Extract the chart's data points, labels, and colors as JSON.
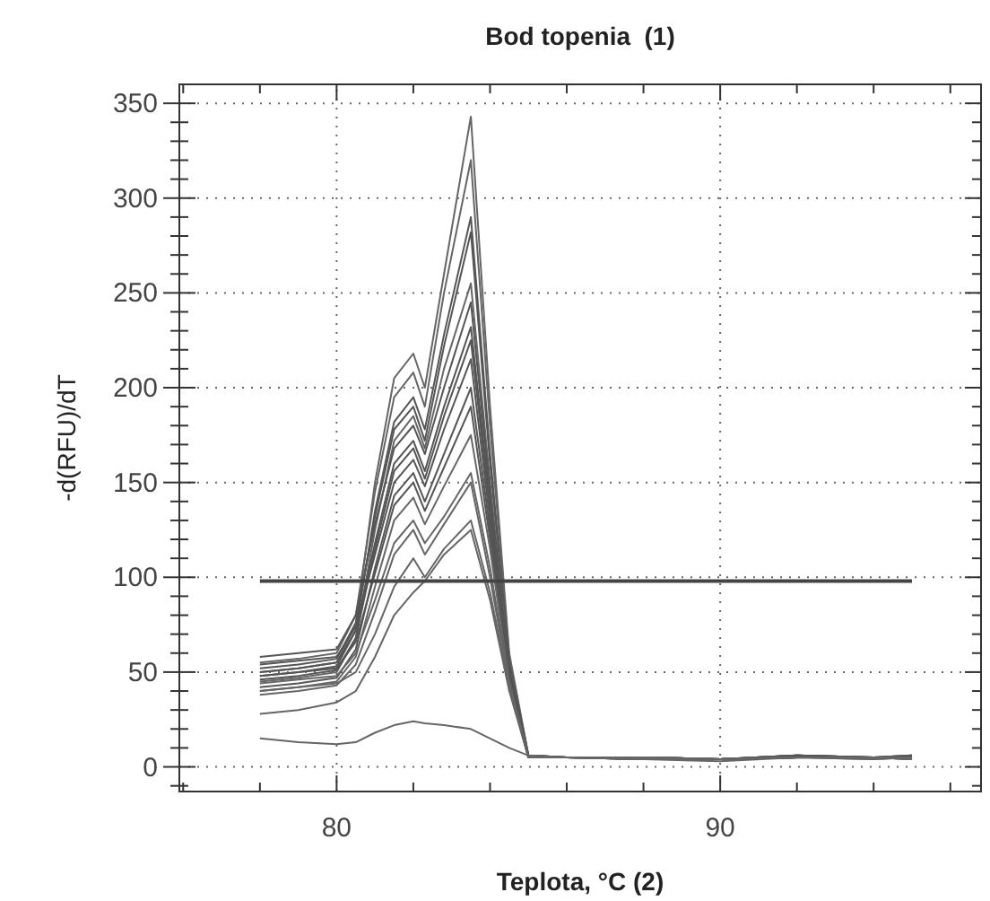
{
  "chart_data": {
    "type": "line",
    "title": "Bod topenia  (1)",
    "xlabel": "Teplota, °C (2)",
    "ylabel": "-d(RFU)/dT",
    "xlim": [
      75.9,
      96.8
    ],
    "ylim": [
      -13,
      360
    ],
    "xticks": [
      {
        "value": 76,
        "label": null
      },
      {
        "value": 78,
        "label": null
      },
      80,
      {
        "value": 82,
        "label": null
      },
      {
        "value": 84,
        "label": null
      },
      {
        "value": 86,
        "label": null
      },
      {
        "value": 88,
        "label": null
      },
      90,
      {
        "value": 92,
        "label": null
      },
      {
        "value": 94,
        "label": null
      },
      {
        "value": 96,
        "label": null
      }
    ],
    "yticks": [
      {
        "value": -10,
        "label": null
      },
      0,
      {
        "value": 10,
        "label": null
      },
      {
        "value": 20,
        "label": null
      },
      {
        "value": 30,
        "label": null
      },
      {
        "value": 40,
        "label": null
      },
      50,
      {
        "value": 60,
        "label": null
      },
      {
        "value": 70,
        "label": null
      },
      {
        "value": 80,
        "label": null
      },
      {
        "value": 90,
        "label": null
      },
      100,
      {
        "value": 110,
        "label": null
      },
      {
        "value": 120,
        "label": null
      },
      {
        "value": 130,
        "label": null
      },
      {
        "value": 140,
        "label": null
      },
      150,
      {
        "value": 160,
        "label": null
      },
      {
        "value": 170,
        "label": null
      },
      {
        "value": 180,
        "label": null
      },
      {
        "value": 190,
        "label": null
      },
      200,
      {
        "value": 210,
        "label": null
      },
      {
        "value": 220,
        "label": null
      },
      {
        "value": 230,
        "label": null
      },
      {
        "value": 240,
        "label": null
      },
      250,
      {
        "value": 260,
        "label": null
      },
      {
        "value": 270,
        "label": null
      },
      {
        "value": 280,
        "label": null
      },
      {
        "value": 290,
        "label": null
      },
      300,
      {
        "value": 310,
        "label": null
      },
      {
        "value": 320,
        "label": null
      },
      {
        "value": 330,
        "label": null
      },
      {
        "value": 340,
        "label": null
      },
      350
    ],
    "grid": true,
    "marker": "none",
    "line_style": "solid",
    "x": [
      78,
      79,
      80,
      80.5,
      81,
      81.5,
      82,
      82.3,
      82.8,
      83.5,
      84,
      84.5,
      85,
      86,
      88,
      90,
      92,
      94,
      95
    ],
    "series": [
      {
        "color": "#666666",
        "values": [
          50,
          52,
          55,
          75,
          150,
          205,
          218,
          200,
          260,
          343,
          190,
          60,
          6,
          5,
          5,
          4,
          6,
          5,
          5
        ]
      },
      {
        "color": "#666666",
        "values": [
          55,
          57,
          60,
          80,
          145,
          195,
          208,
          190,
          250,
          320,
          180,
          58,
          6,
          5,
          5,
          4,
          6,
          5,
          6
        ]
      },
      {
        "color": "#555555",
        "values": [
          48,
          50,
          53,
          72,
          135,
          182,
          195,
          178,
          228,
          290,
          165,
          55,
          6,
          5,
          4,
          4,
          5,
          5,
          4
        ]
      },
      {
        "color": "#555555",
        "values": [
          52,
          54,
          57,
          76,
          132,
          178,
          190,
          172,
          222,
          282,
          160,
          55,
          5,
          5,
          5,
          4,
          6,
          5,
          5
        ]
      },
      {
        "color": "#666666",
        "values": [
          45,
          47,
          50,
          68,
          125,
          172,
          185,
          168,
          210,
          255,
          150,
          52,
          5,
          5,
          4,
          3,
          5,
          4,
          5
        ]
      },
      {
        "color": "#555555",
        "values": [
          58,
          60,
          62,
          80,
          128,
          168,
          180,
          165,
          200,
          245,
          145,
          52,
          6,
          5,
          5,
          4,
          6,
          5,
          6
        ]
      },
      {
        "color": "#555555",
        "values": [
          50,
          52,
          55,
          72,
          118,
          160,
          172,
          156,
          190,
          232,
          140,
          50,
          5,
          5,
          4,
          4,
          5,
          5,
          4
        ]
      },
      {
        "color": "#555555",
        "values": [
          46,
          48,
          51,
          68,
          115,
          156,
          168,
          152,
          185,
          225,
          135,
          50,
          5,
          5,
          5,
          4,
          5,
          5,
          5
        ]
      },
      {
        "color": "#555555",
        "values": [
          54,
          56,
          58,
          74,
          112,
          150,
          162,
          148,
          178,
          215,
          130,
          48,
          6,
          5,
          5,
          4,
          6,
          5,
          6
        ]
      },
      {
        "color": "#555555",
        "values": [
          42,
          44,
          47,
          62,
          105,
          143,
          155,
          140,
          165,
          200,
          125,
          47,
          5,
          5,
          4,
          4,
          5,
          5,
          4
        ]
      },
      {
        "color": "#555555",
        "values": [
          48,
          50,
          52,
          66,
          102,
          138,
          150,
          135,
          158,
          190,
          120,
          46,
          5,
          5,
          5,
          4,
          5,
          5,
          5
        ]
      },
      {
        "color": "#666666",
        "values": [
          40,
          42,
          45,
          58,
          95,
          130,
          142,
          128,
          148,
          175,
          115,
          45,
          5,
          5,
          4,
          4,
          5,
          4,
          5
        ]
      },
      {
        "color": "#666666",
        "values": [
          44,
          46,
          48,
          60,
          88,
          118,
          130,
          118,
          132,
          155,
          105,
          44,
          5,
          5,
          5,
          4,
          5,
          5,
          5
        ]
      },
      {
        "color": "#666666",
        "values": [
          38,
          40,
          43,
          54,
          82,
          112,
          125,
          112,
          128,
          150,
          100,
          43,
          5,
          5,
          4,
          4,
          5,
          5,
          4
        ]
      },
      {
        "color": "#666666",
        "values": [
          40,
          42,
          44,
          50,
          70,
          95,
          110,
          100,
          115,
          130,
          92,
          42,
          5,
          5,
          5,
          4,
          5,
          5,
          5
        ]
      },
      {
        "color": "#666666",
        "values": [
          28,
          30,
          34,
          40,
          58,
          80,
          92,
          98,
          112,
          125,
          88,
          40,
          5,
          5,
          4,
          4,
          5,
          5,
          5
        ]
      },
      {
        "color": "#666666",
        "values": [
          15,
          13,
          12,
          13,
          18,
          22,
          24,
          23,
          22,
          20,
          15,
          10,
          6,
          5,
          5,
          4,
          5,
          5,
          5
        ]
      },
      {
        "color": "#444444",
        "x": [
          78,
          95
        ],
        "values": [
          98,
          98
        ]
      }
    ]
  }
}
